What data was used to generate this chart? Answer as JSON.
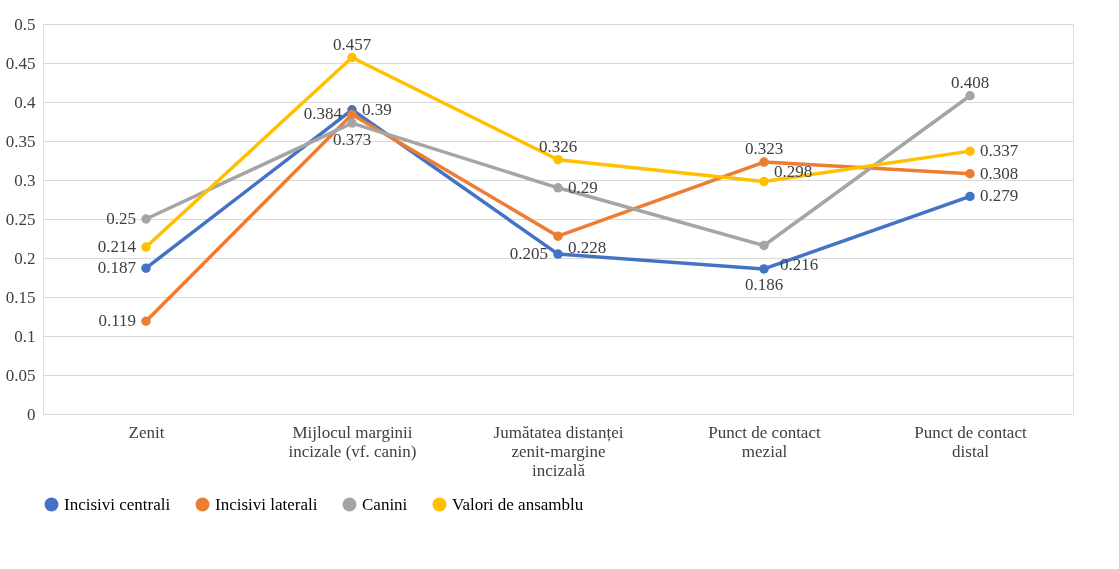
{
  "chart_data": {
    "type": "line",
    "categories": [
      "Zenit",
      "Mijlocul marginii incizale (vf. canin)",
      "Jumătatea distanței zenit-margine incizală",
      "Punct de contact mezial",
      "Punct de contact distal"
    ],
    "series": [
      {
        "name": "Incisivi centrali",
        "color": "#4472c4",
        "values": [
          0.187,
          0.39,
          0.205,
          0.186,
          0.279
        ]
      },
      {
        "name": "Incisivi laterali",
        "color": "#ed7d31",
        "values": [
          0.119,
          0.384,
          0.228,
          0.323,
          0.308
        ]
      },
      {
        "name": "Canini",
        "color": "#a5a5a5",
        "values": [
          0.25,
          0.373,
          0.29,
          0.216,
          0.408
        ]
      },
      {
        "name": "Valori de ansamblu",
        "color": "#ffc000",
        "values": [
          0.214,
          0.457,
          0.326,
          0.298,
          0.337
        ]
      }
    ],
    "ylim": [
      0,
      0.5
    ],
    "yticks": [
      0,
      0.05,
      0.1,
      0.15,
      0.2,
      0.25,
      0.3,
      0.35,
      0.4,
      0.45,
      0.5
    ],
    "grid": "y",
    "legend": "bottom",
    "marker": "circle",
    "line_style": "solid",
    "data_labels": true
  }
}
